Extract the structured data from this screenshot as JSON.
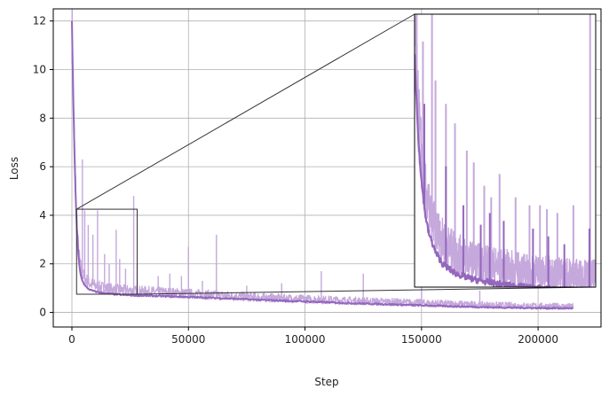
{
  "chart_data": {
    "type": "line",
    "xlabel": "Step",
    "ylabel": "Loss",
    "xlim": [
      -8000,
      227000
    ],
    "ylim": [
      -0.6,
      12.5
    ],
    "xticks": [
      0,
      50000,
      100000,
      150000,
      200000
    ],
    "xtick_labels": [
      "0",
      "50000",
      "100000",
      "150000",
      "200000"
    ],
    "yticks": [
      0,
      2,
      4,
      6,
      8,
      10,
      12
    ],
    "ytick_labels": [
      "0",
      "2",
      "4",
      "6",
      "8",
      "10",
      "12"
    ],
    "grid": true,
    "legend": null,
    "colors": {
      "raw": "#c5a8dc",
      "smoothed": "#9467bd",
      "frame": "#333333",
      "grid": "#b0b0b0"
    },
    "series": [
      {
        "role": "raw",
        "x": [
          0,
          500,
          1000,
          1500,
          2000,
          2500,
          3000,
          3500,
          4000,
          5000,
          6000,
          7000,
          8000,
          10000,
          12000,
          15000,
          18000,
          22000,
          27000,
          35000,
          45000,
          60000,
          80000,
          100000,
          120000,
          140000,
          160000,
          180000,
          200000,
          215000
        ],
        "y": [
          12.0,
          9.5,
          7.2,
          5.4,
          4.0,
          3.0,
          2.4,
          2.0,
          1.75,
          1.5,
          1.35,
          1.25,
          1.18,
          1.1,
          1.05,
          1.0,
          0.95,
          0.92,
          0.88,
          0.85,
          0.8,
          0.72,
          0.62,
          0.55,
          0.48,
          0.42,
          0.36,
          0.3,
          0.26,
          0.24
        ]
      },
      {
        "role": "smoothed",
        "x": [
          0,
          500,
          1000,
          1500,
          2000,
          2500,
          3000,
          3500,
          4000,
          5000,
          6000,
          7000,
          8000,
          10000,
          12000,
          15000,
          18000,
          22000,
          27000,
          35000,
          45000,
          60000,
          80000,
          100000,
          120000,
          140000,
          160000,
          180000,
          200000,
          215000
        ],
        "y": [
          12.0,
          9.2,
          7.0,
          5.1,
          3.7,
          2.7,
          2.1,
          1.7,
          1.45,
          1.2,
          1.05,
          0.98,
          0.92,
          0.86,
          0.82,
          0.78,
          0.75,
          0.72,
          0.7,
          0.68,
          0.65,
          0.6,
          0.52,
          0.45,
          0.38,
          0.32,
          0.26,
          0.21,
          0.18,
          0.17
        ]
      }
    ],
    "spikes": [
      {
        "x": 4500,
        "y": 6.3
      },
      {
        "x": 5500,
        "y": 4.2
      },
      {
        "x": 7000,
        "y": 3.6
      },
      {
        "x": 9000,
        "y": 3.2
      },
      {
        "x": 11000,
        "y": 4.2
      },
      {
        "x": 14000,
        "y": 2.4
      },
      {
        "x": 16000,
        "y": 2.0
      },
      {
        "x": 19000,
        "y": 3.4
      },
      {
        "x": 20500,
        "y": 2.2
      },
      {
        "x": 23000,
        "y": 1.8
      },
      {
        "x": 26500,
        "y": 4.8
      },
      {
        "x": 28000,
        "y": 2.0
      },
      {
        "x": 37000,
        "y": 1.5
      },
      {
        "x": 42000,
        "y": 1.6
      },
      {
        "x": 47000,
        "y": 1.5
      },
      {
        "x": 50000,
        "y": 2.7
      },
      {
        "x": 56000,
        "y": 1.3
      },
      {
        "x": 62000,
        "y": 3.2
      },
      {
        "x": 75000,
        "y": 1.1
      },
      {
        "x": 90000,
        "y": 1.2
      },
      {
        "x": 107000,
        "y": 1.7
      },
      {
        "x": 125000,
        "y": 1.6
      },
      {
        "x": 150000,
        "y": 1.1
      },
      {
        "x": 175000,
        "y": 0.9
      }
    ],
    "inset": {
      "source_xlim": [
        2000,
        28000
      ],
      "source_ylim": [
        0.75,
        4.25
      ],
      "raw_spikes": [
        {
          "x": 2300,
          "y": 4.25
        },
        {
          "x": 3200,
          "y": 3.9
        },
        {
          "x": 4500,
          "y": 4.25
        },
        {
          "x": 5000,
          "y": 3.4
        },
        {
          "x": 6500,
          "y": 3.1
        },
        {
          "x": 7800,
          "y": 2.85
        },
        {
          "x": 9500,
          "y": 2.5
        },
        {
          "x": 10500,
          "y": 2.35
        },
        {
          "x": 12000,
          "y": 2.05
        },
        {
          "x": 13000,
          "y": 1.9
        },
        {
          "x": 14200,
          "y": 2.2
        },
        {
          "x": 16500,
          "y": 1.9
        },
        {
          "x": 18500,
          "y": 1.8
        },
        {
          "x": 20000,
          "y": 1.8
        },
        {
          "x": 21000,
          "y": 1.75
        },
        {
          "x": 22500,
          "y": 1.7
        },
        {
          "x": 24800,
          "y": 1.8
        },
        {
          "x": 27200,
          "y": 4.25
        }
      ],
      "smoothed_spikes": [
        {
          "x": 3400,
          "y": 3.1
        },
        {
          "x": 6500,
          "y": 2.3
        },
        {
          "x": 9000,
          "y": 1.8
        },
        {
          "x": 11500,
          "y": 1.55
        },
        {
          "x": 12800,
          "y": 1.7
        },
        {
          "x": 14800,
          "y": 1.6
        },
        {
          "x": 19000,
          "y": 1.5
        },
        {
          "x": 21200,
          "y": 1.4
        },
        {
          "x": 23500,
          "y": 1.3
        },
        {
          "x": 27100,
          "y": 1.5
        }
      ]
    }
  }
}
